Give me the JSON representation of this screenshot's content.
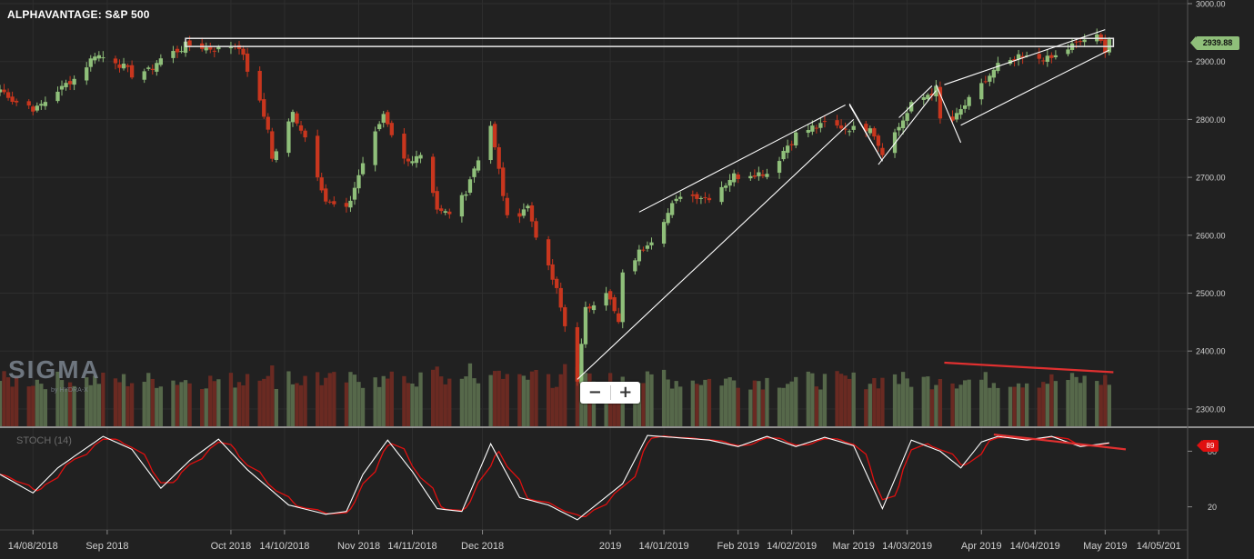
{
  "chart": {
    "title": "ALPHAVANTAGE: S&P 500",
    "last_price_label": "2939.88",
    "stoch_label": "STOCH (14)",
    "stoch_value_label": "89",
    "logo_text": "SIGMA",
    "logo_subtext": "by HYDRA-X",
    "zoom_out_label": "−",
    "zoom_in_label": "+"
  },
  "colors": {
    "background": "#212121",
    "up": "#8fbf7a",
    "down": "#c8361e",
    "vol_up": "#56684a",
    "vol_down": "#6a2a22",
    "grid": "#2e2e2e",
    "axis_text": "#cfcfcf",
    "stoch_k": "#ffffff",
    "stoch_d": "#e01010",
    "trendline": "#ffffff",
    "divergence": "#e03030"
  },
  "chart_data": {
    "type": "candlestick",
    "title": "ALPHAVANTAGE: S&P 500",
    "yaxis": {
      "range": [
        2270,
        3000
      ],
      "ticks": [
        3000,
        2900,
        2800,
        2700,
        2600,
        2500,
        2400,
        2300
      ],
      "tick_labels": [
        "3000.00",
        "2900.00",
        "2800.00",
        "2700.00",
        "2600.00",
        "2500.00",
        "2400.00",
        "2300.00"
      ]
    },
    "stoch_axis": {
      "range": [
        0,
        100
      ],
      "ticks": [
        80,
        20
      ],
      "tick_labels": [
        "80",
        "20"
      ]
    },
    "xaxis": {
      "start": "2018-08-06",
      "end": "2019-05-21",
      "ticks": [
        {
          "date": "2018-08-14",
          "label": "14/08/2018"
        },
        {
          "date": "2018-09-01",
          "label": "Sep 2018"
        },
        {
          "date": "2018-10-01",
          "label": "Oct 2018"
        },
        {
          "date": "2018-10-14",
          "label": "14/10/2018"
        },
        {
          "date": "2018-11-01",
          "label": "Nov 2018"
        },
        {
          "date": "2018-11-14",
          "label": "14/11/2018"
        },
        {
          "date": "2018-12-01",
          "label": "Dec 2018"
        },
        {
          "date": "2019-01-01",
          "label": "2019"
        },
        {
          "date": "2019-01-14",
          "label": "14/01/2019"
        },
        {
          "date": "2019-02-01",
          "label": "Feb 2019"
        },
        {
          "date": "2019-02-14",
          "label": "14/02/2019"
        },
        {
          "date": "2019-03-01",
          "label": "Mar 2019"
        },
        {
          "date": "2019-03-14",
          "label": "14/03/2019"
        },
        {
          "date": "2019-04-01",
          "label": "Apr 2019"
        },
        {
          "date": "2019-04-14",
          "label": "14/04/2019"
        },
        {
          "date": "2019-05-01",
          "label": "May 2019"
        },
        {
          "date": "2019-05-14",
          "label": "14/05/201"
        }
      ]
    },
    "close_anchors": [
      [
        "2018-08-06",
        2852
      ],
      [
        "2018-08-10",
        2830
      ],
      [
        "2018-08-15",
        2820
      ],
      [
        "2018-08-20",
        2850
      ],
      [
        "2018-08-24",
        2870
      ],
      [
        "2018-08-29",
        2912
      ],
      [
        "2018-09-04",
        2898
      ],
      [
        "2018-09-07",
        2880
      ],
      [
        "2018-09-11",
        2885
      ],
      [
        "2018-09-14",
        2905
      ],
      [
        "2018-09-21",
        2928
      ],
      [
        "2018-09-28",
        2920
      ],
      [
        "2018-10-03",
        2930
      ],
      [
        "2018-10-05",
        2885
      ],
      [
        "2018-10-10",
        2785
      ],
      [
        "2018-10-11",
        2730
      ],
      [
        "2018-10-16",
        2810
      ],
      [
        "2018-10-19",
        2770
      ],
      [
        "2018-10-24",
        2660
      ],
      [
        "2018-10-29",
        2640
      ],
      [
        "2018-11-02",
        2725
      ],
      [
        "2018-11-07",
        2810
      ],
      [
        "2018-11-12",
        2730
      ],
      [
        "2018-11-16",
        2735
      ],
      [
        "2018-11-20",
        2640
      ],
      [
        "2018-11-23",
        2635
      ],
      [
        "2018-11-27",
        2680
      ],
      [
        "2018-12-03",
        2790
      ],
      [
        "2018-12-07",
        2630
      ],
      [
        "2018-12-12",
        2650
      ],
      [
        "2018-12-14",
        2600
      ],
      [
        "2018-12-19",
        2505
      ],
      [
        "2018-12-24",
        2351
      ],
      [
        "2018-12-26",
        2468
      ],
      [
        "2018-12-31",
        2507
      ],
      [
        "2019-01-03",
        2447
      ],
      [
        "2019-01-04",
        2532
      ],
      [
        "2019-01-11",
        2596
      ],
      [
        "2019-01-18",
        2670
      ],
      [
        "2019-01-25",
        2665
      ],
      [
        "2019-01-31",
        2704
      ],
      [
        "2019-02-08",
        2707
      ],
      [
        "2019-02-15",
        2775
      ],
      [
        "2019-02-22",
        2792
      ],
      [
        "2019-02-28",
        2784
      ],
      [
        "2019-03-05",
        2789
      ],
      [
        "2019-03-08",
        2743
      ],
      [
        "2019-03-15",
        2822
      ],
      [
        "2019-03-21",
        2854
      ],
      [
        "2019-03-22",
        2800
      ],
      [
        "2019-03-25",
        2798
      ],
      [
        "2019-03-29",
        2834
      ],
      [
        "2019-04-05",
        2892
      ],
      [
        "2019-04-12",
        2907
      ],
      [
        "2019-04-18",
        2905
      ],
      [
        "2019-04-26",
        2939
      ],
      [
        "2019-04-29",
        2943
      ],
      [
        "2019-05-01",
        2924
      ],
      [
        "2019-05-02",
        2939.88
      ]
    ],
    "stoch_anchors": [
      [
        "2018-08-06",
        55
      ],
      [
        "2018-08-14",
        35
      ],
      [
        "2018-08-20",
        62
      ],
      [
        "2018-08-31",
        96
      ],
      [
        "2018-09-07",
        82
      ],
      [
        "2018-09-14",
        40
      ],
      [
        "2018-09-21",
        70
      ],
      [
        "2018-09-28",
        93
      ],
      [
        "2018-10-05",
        60
      ],
      [
        "2018-10-15",
        22
      ],
      [
        "2018-10-24",
        12
      ],
      [
        "2018-10-29",
        15
      ],
      [
        "2018-11-02",
        55
      ],
      [
        "2018-11-08",
        92
      ],
      [
        "2018-11-14",
        58
      ],
      [
        "2018-11-20",
        18
      ],
      [
        "2018-11-26",
        15
      ],
      [
        "2018-12-03",
        88
      ],
      [
        "2018-12-10",
        30
      ],
      [
        "2018-12-17",
        22
      ],
      [
        "2018-12-24",
        6
      ],
      [
        "2019-01-04",
        45
      ],
      [
        "2019-01-10",
        97
      ],
      [
        "2019-01-25",
        92
      ],
      [
        "2019-02-01",
        85
      ],
      [
        "2019-02-08",
        96
      ],
      [
        "2019-02-15",
        85
      ],
      [
        "2019-02-22",
        95
      ],
      [
        "2019-03-01",
        86
      ],
      [
        "2019-03-08",
        18
      ],
      [
        "2019-03-15",
        92
      ],
      [
        "2019-03-22",
        80
      ],
      [
        "2019-03-27",
        62
      ],
      [
        "2019-04-01",
        90
      ],
      [
        "2019-04-05",
        96
      ],
      [
        "2019-04-12",
        92
      ],
      [
        "2019-04-18",
        96
      ],
      [
        "2019-04-25",
        85
      ],
      [
        "2019-05-02",
        89
      ]
    ],
    "volume_relative_range": [
      0.35,
      1.0
    ],
    "resistance_zone": {
      "x": [
        "2018-09-20",
        "2019-05-03"
      ],
      "y": [
        2926,
        2940
      ]
    },
    "trendlines": [
      {
        "from": [
          "2018-12-24",
          2351
        ],
        "to": [
          "2019-03-01",
          2800
        ]
      },
      {
        "from": [
          "2019-01-08",
          2640
        ],
        "to": [
          "2019-02-27",
          2825
        ]
      },
      {
        "from": [
          "2019-02-28",
          2825
        ],
        "to": [
          "2019-03-08",
          2728
        ]
      },
      {
        "from": [
          "2019-02-28",
          2827
        ],
        "to": [
          "2019-03-08",
          2728
        ]
      },
      {
        "from": [
          "2019-03-07",
          2722
        ],
        "to": [
          "2019-03-21",
          2850
        ]
      },
      {
        "from": [
          "2019-03-12",
          2803
        ],
        "to": [
          "2019-03-20",
          2858
        ]
      },
      {
        "from": [
          "2019-03-21",
          2860
        ],
        "to": [
          "2019-03-27",
          2760
        ]
      },
      {
        "from": [
          "2019-03-27",
          2790
        ],
        "to": [
          "2019-05-02",
          2920
        ]
      },
      {
        "from": [
          "2019-03-23",
          2860
        ],
        "to": [
          "2019-05-01",
          2955
        ]
      }
    ],
    "divergence_lines": [
      {
        "panel": "volume",
        "from": [
          "2019-03-23",
          1.0
        ],
        "to": [
          "2019-05-03",
          0.85
        ]
      },
      {
        "panel": "stoch",
        "from": [
          "2019-04-04",
          98
        ],
        "to": [
          "2019-05-06",
          82
        ]
      }
    ]
  }
}
